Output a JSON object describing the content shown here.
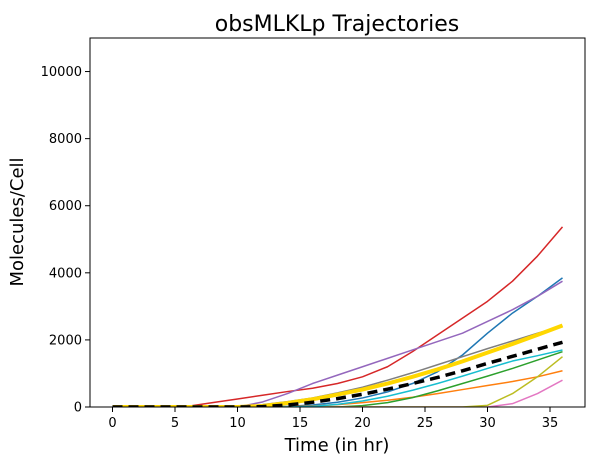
{
  "chart_data": {
    "type": "line",
    "title": "obsMLKLp Trajectories",
    "xlabel": "Time (in hr)",
    "ylabel": "Molecules/Cell",
    "xlim": [
      -1.8,
      37.8
    ],
    "ylim": [
      0,
      11000
    ],
    "xticks": [
      0,
      5,
      10,
      15,
      20,
      25,
      30,
      35
    ],
    "yticks": [
      0,
      2000,
      4000,
      6000,
      8000,
      10000
    ],
    "grid": false,
    "x": [
      0,
      2,
      4,
      6,
      8,
      10,
      12,
      14,
      16,
      18,
      20,
      22,
      24,
      26,
      28,
      30,
      32,
      34,
      36
    ],
    "series": [
      {
        "color": "#1f77b4",
        "width": 1.5,
        "values": [
          0,
          0,
          0,
          0,
          0,
          0,
          0,
          20,
          60,
          140,
          270,
          450,
          700,
          1050,
          1550,
          2200,
          2800,
          3300,
          3850
        ]
      },
      {
        "color": "#ff7f0e",
        "width": 1.5,
        "values": [
          0,
          0,
          0,
          0,
          0,
          0,
          0,
          10,
          30,
          70,
          130,
          200,
          290,
          400,
          520,
          640,
          760,
          900,
          1080
        ]
      },
      {
        "color": "#2ca02c",
        "width": 1.5,
        "values": [
          0,
          0,
          0,
          0,
          0,
          0,
          0,
          0,
          0,
          0,
          40,
          130,
          280,
          480,
          700,
          920,
          1150,
          1400,
          1650
        ]
      },
      {
        "color": "#d62728",
        "width": 1.5,
        "values": [
          0,
          0,
          0,
          20,
          130,
          240,
          350,
          460,
          560,
          700,
          900,
          1200,
          1650,
          2150,
          2650,
          3150,
          3750,
          4500,
          5370
        ]
      },
      {
        "color": "#9467bd",
        "width": 1.5,
        "values": [
          0,
          0,
          0,
          0,
          0,
          0,
          150,
          400,
          700,
          950,
          1200,
          1450,
          1700,
          1950,
          2200,
          2550,
          2900,
          3300,
          3750
        ]
      },
      {
        "color": "#e377c2",
        "width": 1.5,
        "values": [
          0,
          0,
          0,
          0,
          0,
          0,
          0,
          0,
          0,
          0,
          0,
          0,
          0,
          0,
          0,
          0,
          100,
          400,
          800
        ]
      },
      {
        "color": "#7f7f7f",
        "width": 1.5,
        "values": [
          0,
          0,
          0,
          0,
          0,
          0,
          70,
          160,
          270,
          420,
          590,
          800,
          1020,
          1260,
          1500,
          1740,
          1970,
          2200,
          2420
        ]
      },
      {
        "color": "#bcbd22",
        "width": 1.5,
        "values": [
          0,
          0,
          0,
          0,
          0,
          0,
          0,
          0,
          0,
          0,
          0,
          0,
          0,
          0,
          0,
          50,
          400,
          900,
          1500
        ]
      },
      {
        "color": "#17becf",
        "width": 1.5,
        "values": [
          0,
          0,
          0,
          0,
          0,
          0,
          0,
          0,
          20,
          80,
          180,
          320,
          500,
          700,
          920,
          1150,
          1370,
          1530,
          1700
        ]
      },
      {
        "color": "#ffd700",
        "width": 4,
        "values": [
          0,
          0,
          0,
          0,
          0,
          0,
          30,
          120,
          230,
          370,
          520,
          700,
          900,
          1120,
          1360,
          1620,
          1880,
          2150,
          2430
        ]
      },
      {
        "color": "#000000",
        "width": 3.5,
        "dash": "10,6",
        "values": [
          0,
          0,
          0,
          0,
          0,
          0,
          10,
          60,
          140,
          250,
          380,
          530,
          700,
          880,
          1080,
          1300,
          1510,
          1720,
          1930
        ]
      }
    ]
  }
}
